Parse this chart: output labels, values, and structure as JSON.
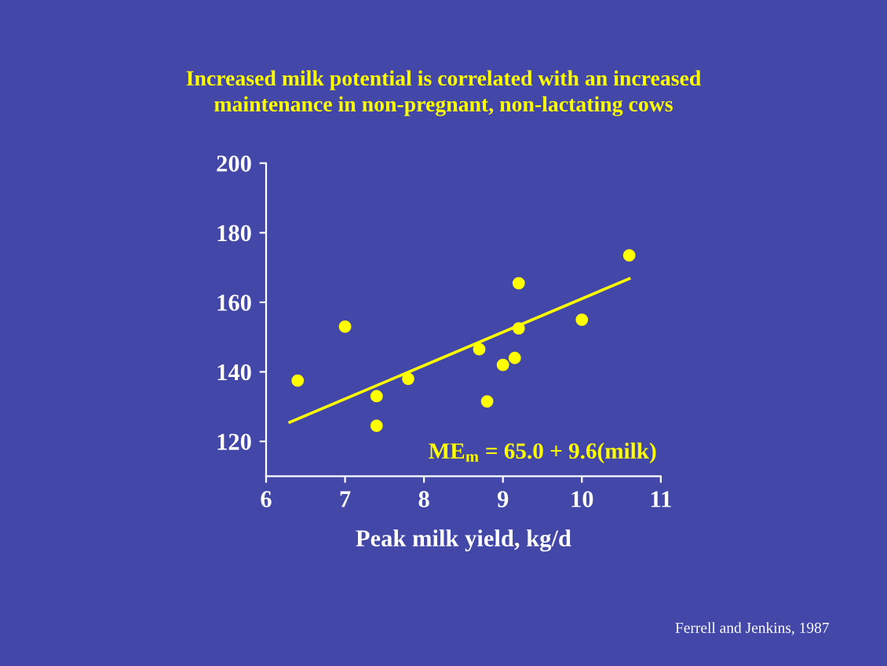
{
  "chart_data": {
    "type": "scatter",
    "title": "Increased milk potential is correlated with an increased\nmaintenance in non-pregnant, non-lactating cows",
    "xlabel": "Peak milk yield, kg/d",
    "series": [
      {
        "color": "#ffff00",
        "x": [
          6.4,
          7.0,
          7.4,
          7.4,
          7.8,
          8.7,
          8.8,
          9.0,
          9.15,
          9.2,
          9.2,
          10.0,
          10.6
        ],
        "values": [
          137.5,
          153,
          133,
          124.5,
          138,
          146.5,
          131.5,
          142,
          144,
          165.5,
          152.5,
          155,
          173.5
        ]
      },
      {
        "type": "line",
        "color": "#ffff00",
        "x": [
          6.3,
          10.6
        ],
        "values": [
          125.5,
          166.8
        ]
      }
    ],
    "annotations": [
      "ME$_{m}$ = 65.0 + 9.6(milk)",
      "Ferrell and Jenkins, 1987"
    ],
    "xlim": [
      6,
      11
    ],
    "ylim": [
      110,
      200
    ],
    "xticks": [
      6,
      7,
      8,
      9,
      10,
      11
    ],
    "yticks": [
      120,
      140,
      160,
      180,
      200
    ],
    "grid": false,
    "legend": false
  }
}
